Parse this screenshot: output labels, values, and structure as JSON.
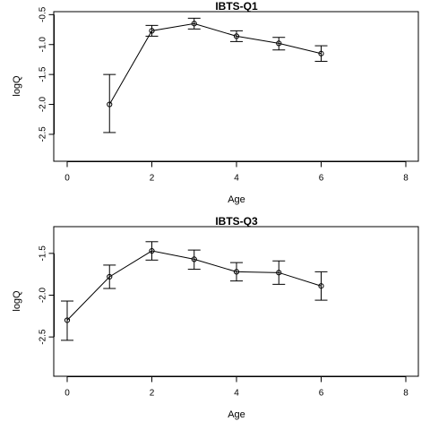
{
  "chart_data": [
    {
      "type": "line",
      "title": "IBTS-Q1",
      "xlabel": "Age",
      "ylabel": "logQ",
      "xlim": [
        0,
        8
      ],
      "ylim": [
        -2.95,
        -0.45
      ],
      "xticks": [
        0,
        2,
        4,
        6,
        8
      ],
      "yticks": [
        -0.5,
        -1.0,
        -1.5,
        -2.0,
        -2.5
      ],
      "ytick_labels": [
        "-0.5",
        "-1.0",
        "-1.5",
        "-2.0",
        "-2.5"
      ],
      "grid": false,
      "error_bars": true,
      "points": [
        {
          "x": 1,
          "y": -2.0,
          "lo": -2.47,
          "hi": -1.5
        },
        {
          "x": 2,
          "y": -0.77,
          "lo": -0.86,
          "hi": -0.68
        },
        {
          "x": 3,
          "y": -0.65,
          "lo": -0.74,
          "hi": -0.56
        },
        {
          "x": 4,
          "y": -0.86,
          "lo": -0.95,
          "hi": -0.77
        },
        {
          "x": 5,
          "y": -0.98,
          "lo": -1.09,
          "hi": -0.88
        },
        {
          "x": 6,
          "y": -1.15,
          "lo": -1.28,
          "hi": -1.02
        }
      ]
    },
    {
      "type": "line",
      "title": "IBTS-Q3",
      "xlabel": "Age",
      "ylabel": "logQ",
      "xlim": [
        0,
        8
      ],
      "ylim": [
        -2.97,
        -1.18
      ],
      "xticks": [
        0,
        2,
        4,
        6,
        8
      ],
      "yticks": [
        -1.5,
        -2.0,
        -2.5
      ],
      "ytick_labels": [
        "-1.5",
        "-2.0",
        "-2.5"
      ],
      "grid": false,
      "error_bars": true,
      "points": [
        {
          "x": 0,
          "y": -2.3,
          "lo": -2.54,
          "hi": -2.07
        },
        {
          "x": 1,
          "y": -1.78,
          "lo": -1.92,
          "hi": -1.64
        },
        {
          "x": 2,
          "y": -1.47,
          "lo": -1.58,
          "hi": -1.36
        },
        {
          "x": 3,
          "y": -1.57,
          "lo": -1.69,
          "hi": -1.46
        },
        {
          "x": 4,
          "y": -1.72,
          "lo": -1.83,
          "hi": -1.61
        },
        {
          "x": 5,
          "y": -1.73,
          "lo": -1.87,
          "hi": -1.59
        },
        {
          "x": 6,
          "y": -1.89,
          "lo": -2.06,
          "hi": -1.72
        }
      ]
    }
  ]
}
